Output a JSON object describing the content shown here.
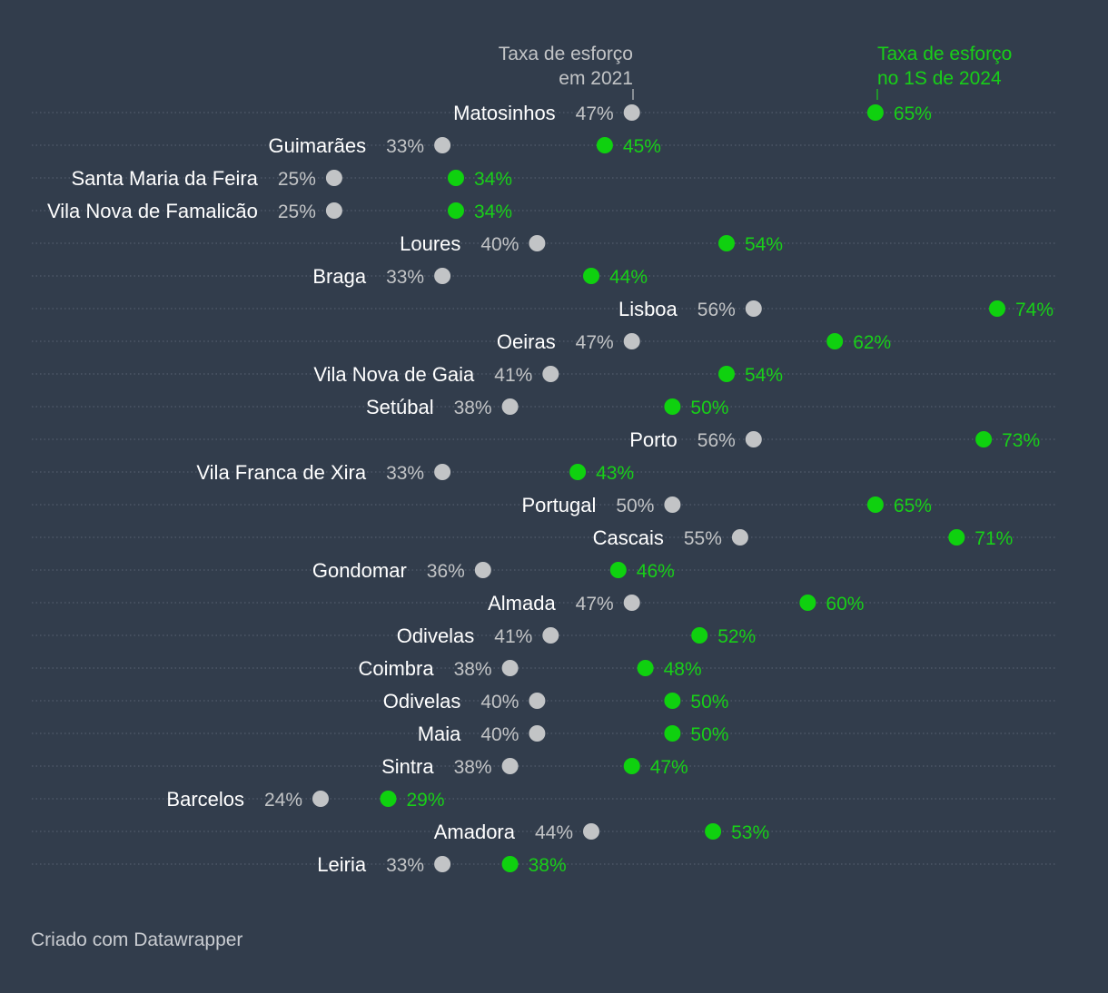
{
  "chart_data": {
    "type": "dumbbell",
    "legend": {
      "start_label_line1": "Taxa de esforço",
      "start_label_line2": "em 2021",
      "end_label_line1": "Taxa de esforço",
      "end_label_line2": "no 1S de 2024"
    },
    "start_series_name": "Taxa de esforço em 2021",
    "end_series_name": "Taxa de esforço no 1S de 2024",
    "categories": [
      "Matosinhos",
      "Guimarães",
      "Santa Maria da Feira",
      "Vila Nova de Famalicão",
      "Loures",
      "Braga",
      "Lisboa",
      "Oeiras",
      "Vila Nova de Gaia",
      "Setúbal",
      "Porto",
      "Vila Franca de Xira",
      "Portugal",
      "Cascais",
      "Gondomar",
      "Almada",
      "Odivelas",
      "Coimbra",
      "Odivelas",
      "Maia",
      "Sintra",
      "Barcelos",
      "Amadora",
      "Leiria"
    ],
    "start_values": [
      47,
      33,
      25,
      25,
      40,
      33,
      56,
      47,
      41,
      38,
      56,
      33,
      50,
      55,
      36,
      47,
      41,
      38,
      40,
      40,
      38,
      24,
      44,
      33
    ],
    "end_values": [
      65,
      45,
      34,
      34,
      54,
      44,
      74,
      62,
      54,
      50,
      73,
      43,
      65,
      71,
      46,
      60,
      52,
      48,
      50,
      50,
      47,
      29,
      53,
      38
    ],
    "value_suffix": "%"
  },
  "colors": {
    "background": "#323d4c",
    "start": "#c2c4c6",
    "end": "#0fd10f",
    "label": "#ffffff",
    "start_value_text": "#c2c4c6",
    "end_value_text": "#18cf18",
    "gridline": "#5b6473"
  },
  "footer": {
    "credit": "Criado com Datawrapper"
  }
}
